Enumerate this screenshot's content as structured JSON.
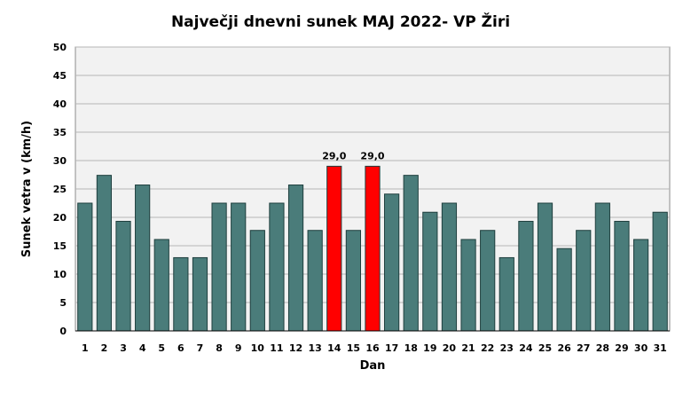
{
  "chart_data": {
    "type": "bar",
    "title": "Največji dnevni sunek MAJ 2022- VP Žiri",
    "xlabel": "Dan",
    "ylabel": "Sunek vetra v (km/h)",
    "ylim": [
      0,
      50
    ],
    "yticks": [
      0,
      5,
      10,
      15,
      20,
      25,
      30,
      35,
      40,
      45,
      50
    ],
    "grid": true,
    "categories": [
      "1",
      "2",
      "3",
      "4",
      "5",
      "6",
      "7",
      "8",
      "9",
      "10",
      "11",
      "12",
      "13",
      "14",
      "15",
      "16",
      "17",
      "18",
      "19",
      "20",
      "21",
      "22",
      "23",
      "24",
      "25",
      "26",
      "27",
      "28",
      "29",
      "30",
      "31"
    ],
    "values": [
      22.5,
      27.4,
      19.3,
      25.7,
      16.1,
      12.9,
      12.9,
      22.5,
      22.5,
      17.7,
      22.5,
      25.7,
      17.7,
      29.0,
      17.7,
      29.0,
      24.1,
      27.4,
      20.9,
      22.5,
      16.1,
      17.7,
      12.9,
      19.3,
      22.5,
      14.5,
      17.7,
      22.5,
      19.3,
      16.1,
      20.9
    ],
    "highlight_indices": [
      13,
      15
    ],
    "data_labels": [
      {
        "index": 13,
        "text": "29,0"
      },
      {
        "index": 15,
        "text": "29,0"
      }
    ],
    "colors": {
      "bar": "#4a7c7a",
      "bar_highlight": "#ff0000",
      "bar_stroke": "#1f3f3e",
      "plot_background": "#f2f2f2",
      "grid": "#b5b5b5"
    }
  }
}
